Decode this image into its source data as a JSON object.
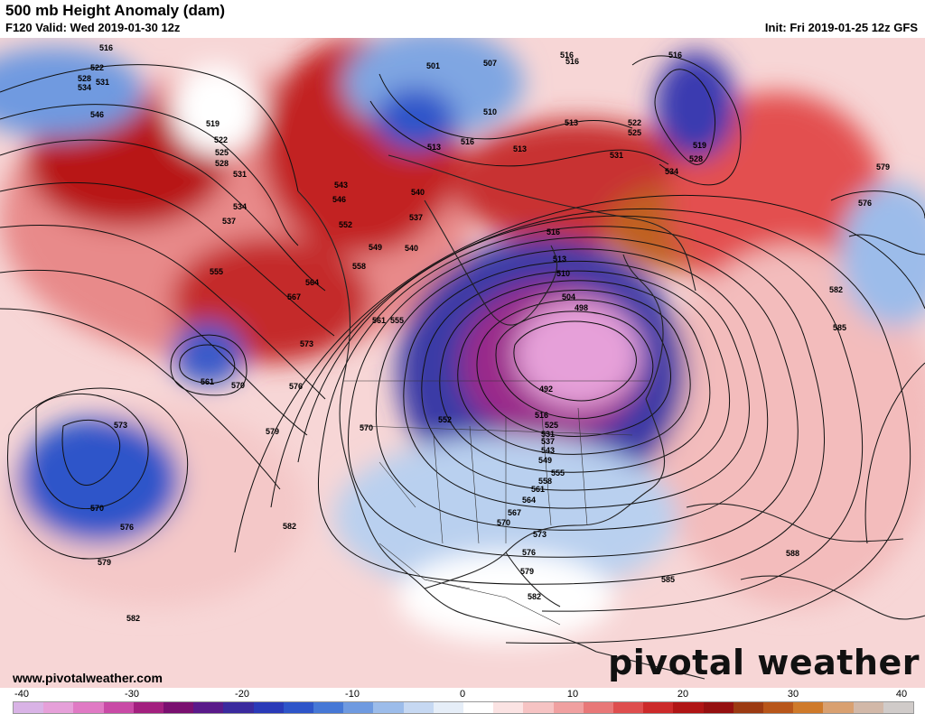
{
  "header": {
    "title": "500 mb Height Anomaly (dam)",
    "valid": "F120 Valid: Wed 2019-01-30 12z",
    "init": "Init: Fri 2019-01-25 12z GFS"
  },
  "footer": {
    "url": "www.pivotalweather.com",
    "brand": "pivotal weather"
  },
  "colorbar": {
    "ticks": [
      "-40",
      "-30",
      "-20",
      "-10",
      "0",
      "10",
      "20",
      "30",
      "40"
    ],
    "colors": [
      "#d9b3e6",
      "#e6a0d9",
      "#e07ac4",
      "#c94aa6",
      "#a3207f",
      "#7a1070",
      "#5a1a8a",
      "#3a2a9e",
      "#2a3ab8",
      "#2e55c9",
      "#4678d6",
      "#6f9ae0",
      "#9cbcea",
      "#c6d8f2",
      "#e6eef8",
      "#ffffff",
      "#fbe3e3",
      "#f6c3c3",
      "#f0a0a0",
      "#e87878",
      "#de4e4e",
      "#cc2a2a",
      "#b01515",
      "#951010",
      "#9c3a12",
      "#b8561a",
      "#cf7a2a",
      "#d9a070",
      "#d2b8a8",
      "#d0cbc9"
    ]
  },
  "map": {
    "contour_labels": [
      "516",
      "522",
      "528",
      "531",
      "534",
      "546",
      "519",
      "522",
      "525",
      "528",
      "531",
      "534",
      "537",
      "540",
      "501",
      "507",
      "516",
      "516",
      "510",
      "513",
      "513",
      "516",
      "513",
      "522",
      "525",
      "531",
      "528",
      "519",
      "516",
      "534",
      "579",
      "576",
      "543",
      "546",
      "552",
      "549",
      "540",
      "537",
      "558",
      "516",
      "513",
      "510",
      "555",
      "564",
      "567",
      "561",
      "555",
      "504",
      "498",
      "492",
      "516",
      "525",
      "531",
      "537",
      "543",
      "549",
      "555",
      "558",
      "561",
      "564",
      "567",
      "570",
      "573",
      "576",
      "579",
      "582",
      "585",
      "561",
      "570",
      "573",
      "576",
      "570",
      "552",
      "579",
      "573",
      "570",
      "576",
      "579",
      "582",
      "582",
      "585",
      "588",
      "582"
    ],
    "brand_color": "#111111"
  }
}
